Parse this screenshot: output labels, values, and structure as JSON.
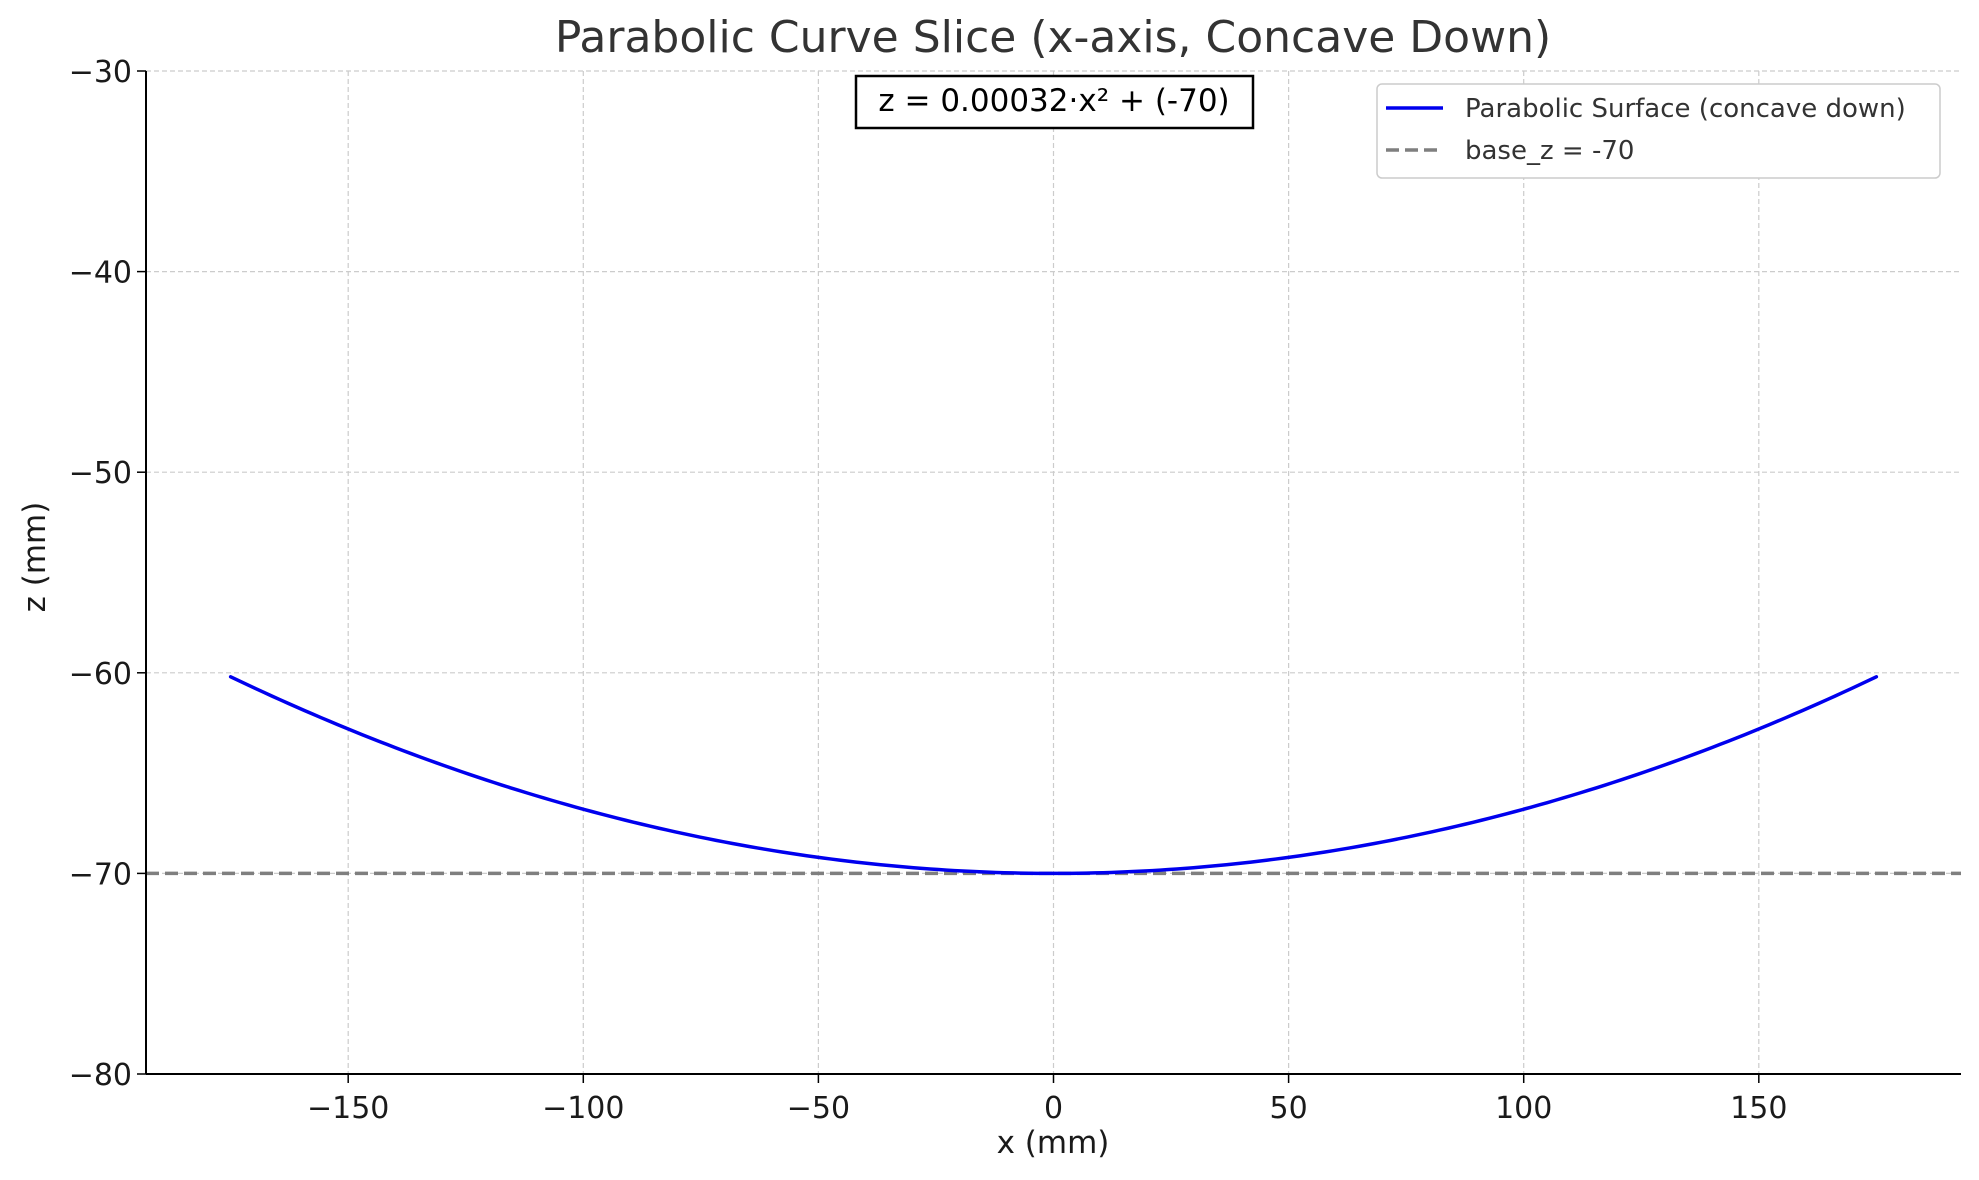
{
  "chart_data": {
    "type": "line",
    "title": "Parabolic Curve Slice (x-axis, Concave Down)",
    "xlabel": "x (mm)",
    "ylabel": "z (mm)",
    "xlim": [
      -193,
      193
    ],
    "ylim": [
      -80,
      -30
    ],
    "xticks": [
      -150,
      -100,
      -50,
      0,
      50,
      100,
      150
    ],
    "yticks": [
      -80,
      -70,
      -60,
      -50,
      -40,
      -30
    ],
    "xtick_labels": [
      "−150",
      "−100",
      "−50",
      "0",
      "50",
      "100",
      "150"
    ],
    "ytick_labels": [
      "−80",
      "−70",
      "−60",
      "−50",
      "−40",
      "−30"
    ],
    "grid": true,
    "legend_position": "top-right",
    "annotation": "z = 0.00032·x² + (-70)",
    "series": [
      {
        "name": "Parabolic Surface (concave down)",
        "style": "solid",
        "color": "#0000ee",
        "equation": {
          "a": 0.00032,
          "c": -70
        },
        "x_range": [
          -175,
          175
        ],
        "x": [
          -175,
          -150,
          -125,
          -100,
          -75,
          -50,
          -25,
          0,
          25,
          50,
          75,
          100,
          125,
          150,
          175
        ],
        "y": [
          -60.2,
          -62.8,
          -65.0,
          -66.8,
          -68.2,
          -69.2,
          -69.8,
          -70.0,
          -69.8,
          -69.2,
          -68.2,
          -66.8,
          -65.0,
          -62.8,
          -60.2
        ]
      },
      {
        "name": "base_z = -70",
        "style": "dashed",
        "color": "#7f7f7f",
        "y_constant": -70
      }
    ]
  }
}
